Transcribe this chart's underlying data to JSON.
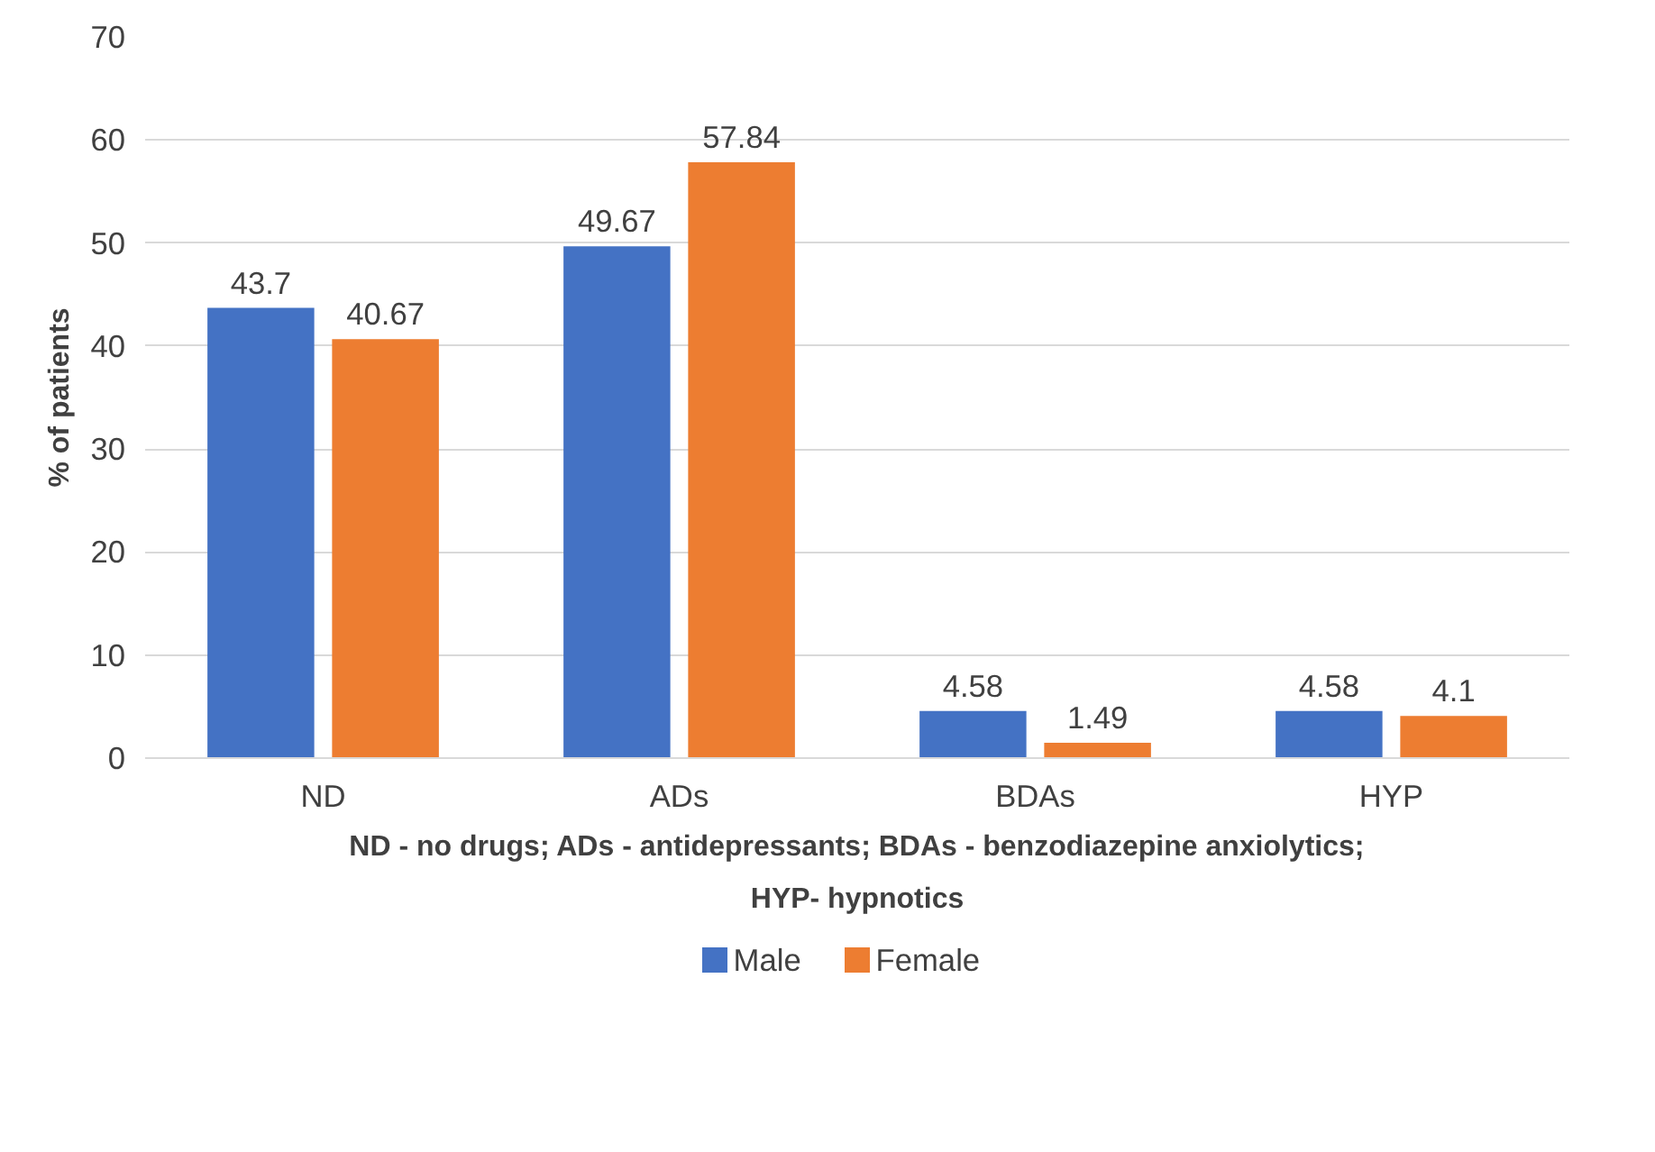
{
  "chart_data": {
    "type": "bar",
    "xlabel": "ND - no drugs; ADs - antidepressants; BDAs - benzodiazepine anxiolytics;\nHYP- hypnotics",
    "ylabel": "% of patients",
    "categories": [
      "ND",
      "ADs",
      "BDAs",
      "HYP"
    ],
    "series": [
      {
        "name": "Male",
        "color": "#4472c4",
        "values": [
          43.7,
          49.67,
          4.58,
          4.58
        ]
      },
      {
        "name": "Female",
        "color": "#ed7d31",
        "values": [
          40.67,
          57.84,
          1.49,
          4.1
        ]
      }
    ],
    "ylim": [
      0,
      70
    ],
    "yticks": [
      0,
      10,
      20,
      30,
      40,
      50,
      60,
      70
    ],
    "grid": "y",
    "legend": "bottom",
    "data_labels": true
  }
}
